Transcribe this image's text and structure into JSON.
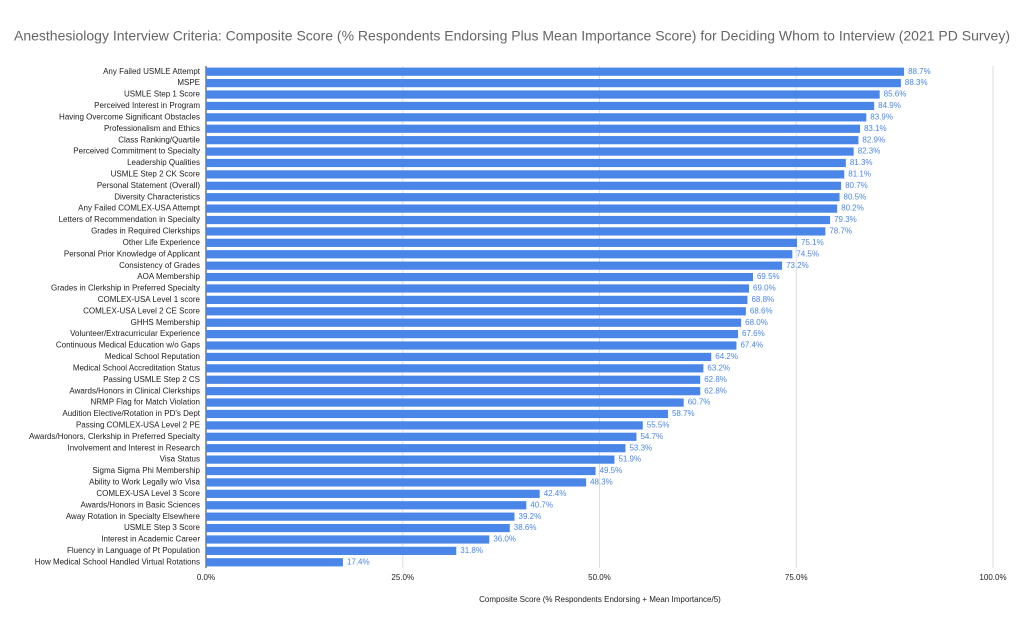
{
  "chart_data": {
    "type": "hbar",
    "title": "Anesthesiology Interview Criteria: Composite Score (% Respondents Endorsing Plus Mean Importance Score) for Deciding Whom to Interview (2021 PD Survey)",
    "x_label": "Composite Score (% Respondents Endorsing + Mean Importance/5)",
    "categories": [
      "Any Failed USMLE Attempt",
      "MSPE",
      "USMLE Step 1 Score",
      "Perceived Interest in Program",
      "Having Overcome Significant Obstacles",
      "Professionalism and Ethics",
      "Class Ranking/Quartile",
      "Perceived Commitment to Specialty",
      "Leadership Qualities",
      "USMLE Step 2 CK Score",
      "Personal Statement (Overall)",
      "Diversity Characteristics",
      "Any Failed COMLEX-USA Attempt",
      "Letters of Recommendation in Specialty",
      "Grades in Required Clerkships",
      "Other Life Experience",
      "Personal Prior Knowledge of Applicant",
      "Consistency of Grades",
      "AOA Membership",
      "Grades in Clerkship in Preferred Specialty",
      "COMLEX-USA Level 1 score",
      "COMLEX-USA Level 2 CE Score",
      "GHHS Membership",
      "Volunteer/Extracurricular Experience",
      "Continuous Medical Education w/o Gaps",
      "Medical School Reputation",
      "Medical School Accreditation Status",
      "Passing USMLE Step 2 CS",
      "Awards/Honors in Clinical Clerkships",
      "NRMP Flag for Match Violation",
      "Audition Elective/Rotation in PD's Dept",
      "Passing COMLEX-USA Level 2 PE",
      "Awards/Honors, Clerkship in Preferred Specialty",
      "Involvement and Interest in Research",
      "Visa Status",
      "Sigma Sigma Phi Membership",
      "Ability to Work Legally w/o Visa",
      "COMLEX-USA Level 3 Score",
      "Awards/Honors in Basic Sciences",
      "Away Rotation in Specialty Elsewhere",
      "USMLE Step 3 Score",
      "Interest in Academic Career",
      "Fluency in Language of Pt Population",
      "How Medical School Handled Virtual Rotations"
    ],
    "values": [
      88.7,
      88.3,
      85.6,
      84.9,
      83.9,
      83.1,
      82.9,
      82.3,
      81.3,
      81.1,
      80.7,
      80.5,
      80.2,
      79.3,
      78.7,
      75.1,
      74.5,
      73.2,
      69.5,
      69.0,
      68.8,
      68.6,
      68.0,
      67.6,
      67.4,
      64.2,
      63.2,
      62.8,
      62.8,
      60.7,
      58.7,
      55.5,
      54.7,
      53.3,
      51.9,
      49.5,
      48.3,
      42.4,
      40.7,
      39.2,
      38.6,
      36.0,
      31.8,
      17.4
    ],
    "value_labels": [
      "88.7%",
      "88.3%",
      "85.6%",
      "84.9%",
      "83.9%",
      "83.1%",
      "82.9%",
      "82.3%",
      "81.3%",
      "81.1%",
      "80.7%",
      "80.5%",
      "80.2%",
      "79.3%",
      "78.7%",
      "75.1%",
      "74.5%",
      "73.2%",
      "69.5%",
      "69.0%",
      "68.8%",
      "68.6%",
      "68.0%",
      "67.6%",
      "67.4%",
      "64.2%",
      "63.2%",
      "62.8%",
      "62.8%",
      "60.7%",
      "58.7%",
      "55.5%",
      "54.7%",
      "53.3%",
      "51.9%",
      "49.5%",
      "48.3%",
      "42.4%",
      "40.7%",
      "39.2%",
      "38.6%",
      "36.0%",
      "31.8%",
      "17.4%"
    ],
    "color": "#4a86e8",
    "xlim": [
      0,
      100
    ],
    "xticks": [
      {
        "value": 0,
        "label": "0.0%"
      },
      {
        "value": 25,
        "label": "25.0%"
      },
      {
        "value": 50,
        "label": "50.0%"
      },
      {
        "value": 75,
        "label": "75.0%"
      },
      {
        "value": 100,
        "label": "100.0%"
      }
    ],
    "grid": true
  }
}
